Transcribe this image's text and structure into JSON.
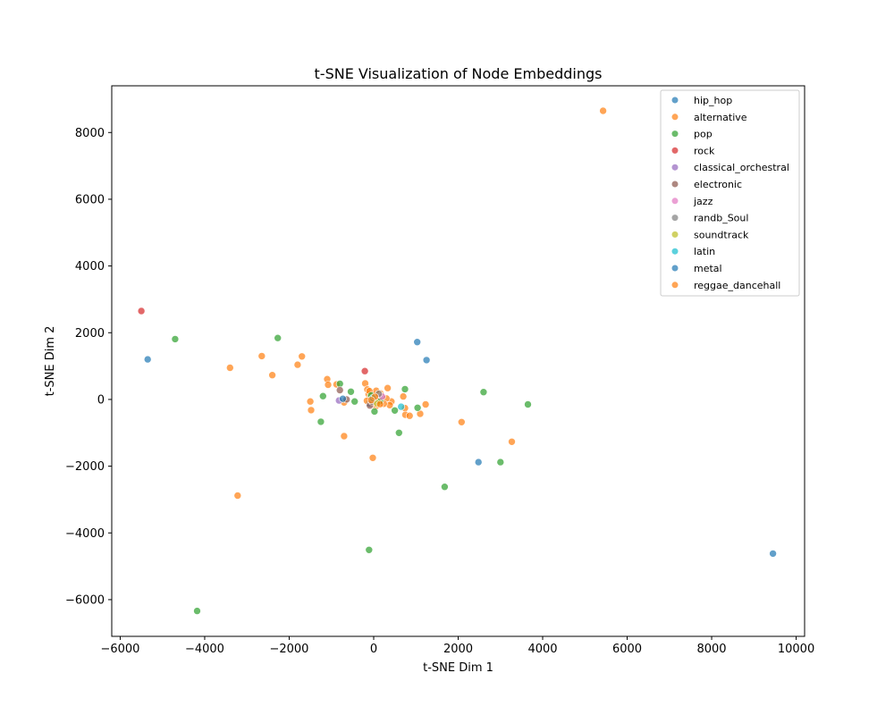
{
  "chart_data": {
    "type": "scatter",
    "title": "t-SNE Visualization of Node Embeddings",
    "xlabel": "t-SNE Dim 1",
    "ylabel": "t-SNE Dim 2",
    "xlim": [
      -6200,
      10200
    ],
    "ylim": [
      -7100,
      9400
    ],
    "xticks": [
      -6000,
      -4000,
      -2000,
      0,
      2000,
      4000,
      6000,
      8000,
      10000
    ],
    "yticks": [
      -6000,
      -4000,
      -2000,
      0,
      2000,
      4000,
      6000,
      8000
    ],
    "grid": false,
    "legend_position": "top-right",
    "series": [
      {
        "name": "hip_hop",
        "color": "#1f77b4",
        "points": [
          [
            -5350,
            1200
          ],
          [
            1030,
            1720
          ],
          [
            1250,
            1180
          ],
          [
            2480,
            -1880
          ],
          [
            -100,
            -120
          ],
          [
            200,
            60
          ]
        ]
      },
      {
        "name": "alternative",
        "color": "#ff7f0e",
        "points": [
          [
            5430,
            8650
          ],
          [
            -3400,
            950
          ],
          [
            -2650,
            1300
          ],
          [
            -2400,
            730
          ],
          [
            -1800,
            1040
          ],
          [
            -1700,
            1290
          ],
          [
            -1500,
            -60
          ],
          [
            -1480,
            -320
          ],
          [
            -1100,
            610
          ],
          [
            -1080,
            440
          ],
          [
            -880,
            450
          ],
          [
            -700,
            -1100
          ],
          [
            -700,
            -90
          ],
          [
            -200,
            480
          ],
          [
            -150,
            300
          ],
          [
            330,
            340
          ],
          [
            700,
            90
          ],
          [
            740,
            -260
          ],
          [
            750,
            -460
          ],
          [
            850,
            -490
          ],
          [
            1100,
            -430
          ],
          [
            1230,
            -150
          ],
          [
            2080,
            -680
          ],
          [
            3270,
            -1270
          ],
          [
            -20,
            -1750
          ],
          [
            -3220,
            -2880
          ],
          [
            420,
            -60
          ],
          [
            380,
            -170
          ],
          [
            300,
            30
          ],
          [
            160,
            180
          ],
          [
            100,
            50
          ],
          [
            -120,
            160
          ],
          [
            -80,
            70
          ],
          [
            50,
            -200
          ],
          [
            -50,
            20
          ],
          [
            10,
            120
          ],
          [
            130,
            -80
          ],
          [
            -160,
            -40
          ],
          [
            60,
            260
          ],
          [
            -30,
            -100
          ],
          [
            240,
            -130
          ],
          [
            -100,
            250
          ]
        ]
      },
      {
        "name": "pop",
        "color": "#2ca02c",
        "points": [
          [
            -4700,
            1810
          ],
          [
            -2270,
            1840
          ],
          [
            -1250,
            -670
          ],
          [
            -1200,
            100
          ],
          [
            -800,
            470
          ],
          [
            -540,
            230
          ],
          [
            -450,
            -60
          ],
          [
            20,
            -360
          ],
          [
            500,
            -330
          ],
          [
            600,
            -1000
          ],
          [
            740,
            310
          ],
          [
            1040,
            -250
          ],
          [
            2600,
            220
          ],
          [
            3650,
            -150
          ],
          [
            1680,
            -2620
          ],
          [
            3000,
            -1880
          ],
          [
            -110,
            -4510
          ],
          [
            -4180,
            -6340
          ],
          [
            150,
            -50
          ],
          [
            -60,
            120
          ]
        ]
      },
      {
        "name": "rock",
        "color": "#d62728",
        "points": [
          [
            -5500,
            2650
          ],
          [
            -210,
            850
          ]
        ]
      },
      {
        "name": "classical_orchestral",
        "color": "#9467bd",
        "points": [
          [
            -820,
            -30
          ]
        ]
      },
      {
        "name": "electronic",
        "color": "#8c564b",
        "points": [
          [
            -800,
            280
          ],
          [
            -640,
            0
          ],
          [
            -90,
            -180
          ]
        ]
      },
      {
        "name": "jazz",
        "color": "#e377c2",
        "points": [
          [
            200,
            90
          ]
        ]
      },
      {
        "name": "randb_Soul",
        "color": "#7f7f7f",
        "points": [
          [
            -40,
            -60
          ],
          [
            120,
            170
          ]
        ]
      },
      {
        "name": "soundtrack",
        "color": "#bcbd22",
        "points": [
          [
            80,
            -120
          ]
        ]
      },
      {
        "name": "latin",
        "color": "#17becf",
        "points": [
          [
            650,
            -220
          ],
          [
            -20,
            40
          ]
        ]
      },
      {
        "name": "metal",
        "color": "#1f77b4",
        "points": [
          [
            9450,
            -4620
          ],
          [
            -730,
            20
          ]
        ]
      },
      {
        "name": "reggae_dancehall",
        "color": "#ff7f0e",
        "points": [
          [
            30,
            80
          ],
          [
            -60,
            -20
          ],
          [
            150,
            -140
          ]
        ]
      }
    ]
  }
}
